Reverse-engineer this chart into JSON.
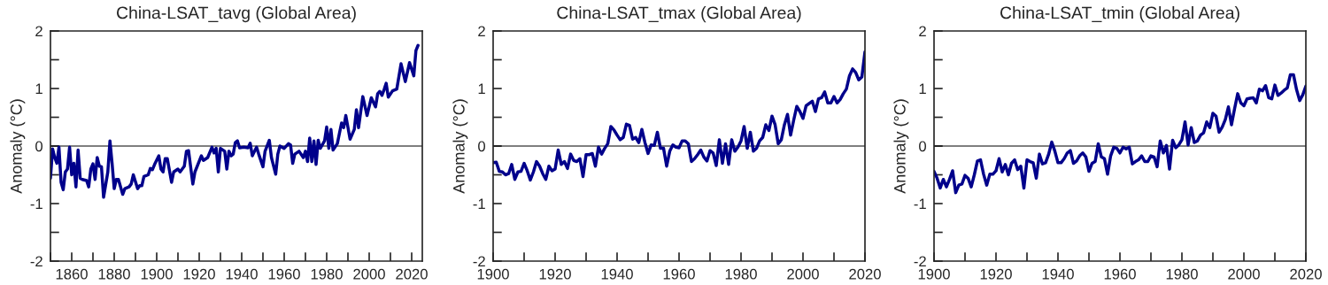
{
  "chart_data": [
    {
      "type": "line",
      "title": "China-LSAT_tavg (Global Area)",
      "ylabel": "Anomaly (°C)",
      "xlim": [
        1850,
        2025
      ],
      "ylim": [
        -2,
        2
      ],
      "xticks": [
        {
          "value": 1850,
          "label": null
        },
        1860,
        {
          "value": 1870,
          "label": null
        },
        1880,
        {
          "value": 1890,
          "label": null
        },
        1900,
        {
          "value": 1910,
          "label": null
        },
        1920,
        {
          "value": 1930,
          "label": null
        },
        1940,
        {
          "value": 1950,
          "label": null
        },
        1960,
        {
          "value": 1970,
          "label": null
        },
        1980,
        {
          "value": 1990,
          "label": null
        },
        2000,
        {
          "value": 2010,
          "label": null
        },
        2020
      ],
      "yticks": [
        -2,
        {
          "value": -1.5,
          "label": null
        },
        -1,
        {
          "value": -0.5,
          "label": null
        },
        0,
        {
          "value": 0.5,
          "label": null
        },
        1,
        {
          "value": 1.5,
          "label": null
        },
        2
      ],
      "grid": false,
      "legend": false,
      "marker": "none",
      "line_style": "solid",
      "ref_lines": [
        {
          "axis": "y",
          "value": 0,
          "color": "#000000"
        }
      ],
      "series": [
        {
          "color": "#00008b",
          "x": [
            1850,
            1851,
            1852,
            1853,
            1854,
            1855,
            1856,
            1857,
            1858,
            1859,
            1860,
            1861,
            1862,
            1863,
            1864,
            1865,
            1867,
            1868,
            1869,
            1870,
            1871,
            1872,
            1873,
            1874,
            1875,
            1877,
            1878,
            1879,
            1880,
            1881,
            1882,
            1884,
            1885,
            1887,
            1888,
            1889,
            1891,
            1892,
            1893,
            1894,
            1896,
            1897,
            1898,
            1899,
            1901,
            1902,
            1903,
            1904,
            1905,
            1907,
            1908,
            1910,
            1911,
            1913,
            1914,
            1915,
            1917,
            1918,
            1921,
            1922,
            1924,
            1926,
            1927,
            1928,
            1929,
            1930,
            1932,
            1933,
            1934,
            1935,
            1936,
            1937,
            1938,
            1939,
            1941,
            1943,
            1944,
            1945,
            1947,
            1948,
            1950,
            1951,
            1953,
            1954,
            1956,
            1957,
            1958,
            1960,
            1962,
            1963,
            1964,
            1965,
            1967,
            1969,
            1970,
            1971,
            1972,
            1973,
            1974,
            1975,
            1976,
            1977,
            1979,
            1980,
            1981,
            1982,
            1983,
            1985,
            1986,
            1987,
            1988,
            1989,
            1991,
            1993,
            1994,
            1995,
            1997,
            1999,
            2001,
            2003,
            2004,
            2005,
            2006,
            2007,
            2008,
            2009,
            2011,
            2013,
            2015,
            2017,
            2019,
            2021,
            2022,
            2023
          ],
          "values": [
            -0.56,
            -0.05,
            -0.2,
            -0.3,
            -0.02,
            -0.63,
            -0.76,
            -0.45,
            -0.4,
            -0.02,
            -0.5,
            -0.3,
            -0.71,
            -0.07,
            -0.56,
            -0.58,
            -0.6,
            -0.71,
            -0.4,
            -0.31,
            -0.58,
            -0.2,
            -0.35,
            -0.36,
            -0.89,
            -0.45,
            0.09,
            -0.3,
            -0.74,
            -0.58,
            -0.58,
            -0.84,
            -0.74,
            -0.71,
            -0.66,
            -0.5,
            -0.74,
            -0.69,
            -0.69,
            -0.53,
            -0.5,
            -0.39,
            -0.41,
            -0.32,
            -0.17,
            -0.4,
            -0.45,
            -0.22,
            -0.22,
            -0.63,
            -0.45,
            -0.4,
            -0.45,
            -0.35,
            -0.09,
            -0.08,
            -0.66,
            -0.45,
            -0.17,
            -0.25,
            -0.2,
            -0.02,
            -0.12,
            -0.04,
            -0.45,
            -0.04,
            -0.09,
            -0.4,
            -0.09,
            -0.17,
            -0.14,
            0.06,
            0.09,
            -0.03,
            -0.02,
            -0.03,
            0.05,
            -0.17,
            -0.02,
            -0.14,
            -0.36,
            -0.09,
            0.1,
            -0.2,
            -0.49,
            -0.14,
            0,
            -0.04,
            0.04,
            0.02,
            -0.3,
            -0.14,
            -0.09,
            -0.2,
            -0.09,
            -0.27,
            0.14,
            -0.27,
            0.09,
            -0.32,
            0.1,
            -0.04,
            0.09,
            0.33,
            -0.04,
            0.29,
            -0.07,
            0.04,
            0.22,
            0.4,
            0.32,
            0.53,
            0.12,
            0.29,
            0.63,
            0.32,
            0.86,
            0.53,
            0.84,
            0.68,
            0.91,
            0.95,
            0.88,
            0.98,
            1.09,
            0.85,
            0.96,
            0.99,
            1.43,
            1.12,
            1.45,
            1.22,
            1.66,
            1.75
          ]
        }
      ]
    },
    {
      "type": "line",
      "title": "China-LSAT_tmax (Global Area)",
      "ylabel": "Anomaly (°C)",
      "xlim": [
        1900,
        2020
      ],
      "ylim": [
        -2,
        2
      ],
      "xticks": [
        1900,
        {
          "value": 1910,
          "label": null
        },
        1920,
        {
          "value": 1930,
          "label": null
        },
        1940,
        {
          "value": 1950,
          "label": null
        },
        1960,
        {
          "value": 1970,
          "label": null
        },
        1980,
        {
          "value": 1990,
          "label": null
        },
        2000,
        {
          "value": 2010,
          "label": null
        },
        2020
      ],
      "yticks": [
        -2,
        {
          "value": -1.5,
          "label": null
        },
        -1,
        {
          "value": -0.5,
          "label": null
        },
        0,
        {
          "value": 0.5,
          "label": null
        },
        1,
        {
          "value": 1.5,
          "label": null
        },
        2
      ],
      "grid": false,
      "legend": false,
      "marker": "none",
      "line_style": "solid",
      "ref_lines": [
        {
          "axis": "y",
          "value": 0,
          "color": "#000000"
        }
      ],
      "series": [
        {
          "color": "#00008b",
          "x": [
            1900,
            1901,
            1902,
            1903,
            1904,
            1905,
            1906,
            1907,
            1908,
            1909,
            1910,
            1911,
            1912,
            1913,
            1914,
            1915,
            1916,
            1917,
            1918,
            1919,
            1920,
            1921,
            1922,
            1923,
            1924,
            1925,
            1926,
            1927,
            1928,
            1929,
            1930,
            1931,
            1932,
            1933,
            1934,
            1935,
            1936,
            1937,
            1938,
            1939,
            1940,
            1941,
            1942,
            1943,
            1944,
            1945,
            1946,
            1947,
            1948,
            1949,
            1950,
            1951,
            1952,
            1953,
            1954,
            1955,
            1956,
            1957,
            1958,
            1959,
            1960,
            1961,
            1962,
            1963,
            1964,
            1965,
            1966,
            1967,
            1968,
            1969,
            1970,
            1971,
            1972,
            1973,
            1974,
            1975,
            1976,
            1977,
            1978,
            1979,
            1980,
            1981,
            1982,
            1983,
            1984,
            1985,
            1986,
            1987,
            1988,
            1989,
            1990,
            1991,
            1992,
            1993,
            1994,
            1995,
            1996,
            1997,
            1998,
            1999,
            2000,
            2001,
            2002,
            2003,
            2004,
            2005,
            2006,
            2007,
            2008,
            2009,
            2010,
            2011,
            2012,
            2013,
            2014,
            2015,
            2016,
            2017,
            2018,
            2019,
            2020
          ],
          "values": [
            -0.29,
            -0.28,
            -0.44,
            -0.45,
            -0.5,
            -0.48,
            -0.32,
            -0.58,
            -0.45,
            -0.44,
            -0.3,
            -0.43,
            -0.59,
            -0.45,
            -0.27,
            -0.35,
            -0.48,
            -0.58,
            -0.35,
            -0.43,
            -0.4,
            -0.07,
            -0.32,
            -0.27,
            -0.39,
            -0.14,
            -0.25,
            -0.27,
            -0.22,
            -0.53,
            -0.15,
            -0.15,
            -0.13,
            -0.35,
            -0.02,
            -0.14,
            -0.04,
            0.04,
            0.34,
            0.28,
            0.19,
            0.11,
            0.15,
            0.38,
            0.36,
            0.12,
            0.15,
            0.06,
            0.29,
            0.06,
            -0.13,
            0.02,
            0.01,
            0.24,
            -0.04,
            -0.04,
            -0.35,
            -0.09,
            0.02,
            -0.02,
            -0.03,
            0.09,
            0.09,
            0.04,
            -0.27,
            -0.22,
            -0.15,
            -0.07,
            -0.19,
            -0.26,
            -0.08,
            -0.12,
            -0.34,
            0.11,
            -0.3,
            0.04,
            -0.32,
            0.11,
            -0.09,
            -0.02,
            0.09,
            0.34,
            -0.04,
            0.24,
            -0.09,
            -0.04,
            0.09,
            0.15,
            0.37,
            0.27,
            0.52,
            0.37,
            0.04,
            0.11,
            0.37,
            0.55,
            0.19,
            0.45,
            0.69,
            0.6,
            0.48,
            0.7,
            0.74,
            0.78,
            0.6,
            0.82,
            0.84,
            0.94,
            0.75,
            0.75,
            0.86,
            0.75,
            0.81,
            0.91,
            0.99,
            1.22,
            1.34,
            1.28,
            1.15,
            1.2,
            1.64
          ]
        }
      ]
    },
    {
      "type": "line",
      "title": "China-LSAT_tmin (Global Area)",
      "ylabel": "Anomaly (°C)",
      "xlim": [
        1900,
        2020
      ],
      "ylim": [
        -2,
        2
      ],
      "xticks": [
        1900,
        {
          "value": 1910,
          "label": null
        },
        1920,
        {
          "value": 1930,
          "label": null
        },
        1940,
        {
          "value": 1950,
          "label": null
        },
        1960,
        {
          "value": 1970,
          "label": null
        },
        1980,
        {
          "value": 1990,
          "label": null
        },
        2000,
        {
          "value": 2010,
          "label": null
        },
        2020
      ],
      "yticks": [
        -2,
        {
          "value": -1.5,
          "label": null
        },
        -1,
        {
          "value": -0.5,
          "label": null
        },
        0,
        {
          "value": 0.5,
          "label": null
        },
        1,
        {
          "value": 1.5,
          "label": null
        },
        2
      ],
      "grid": false,
      "legend": false,
      "marker": "none",
      "line_style": "solid",
      "ref_lines": [
        {
          "axis": "y",
          "value": 0,
          "color": "#000000"
        }
      ],
      "series": [
        {
          "color": "#00008b",
          "x": [
            1900,
            1901,
            1902,
            1903,
            1904,
            1905,
            1906,
            1907,
            1908,
            1909,
            1910,
            1911,
            1912,
            1913,
            1914,
            1915,
            1916,
            1917,
            1918,
            1919,
            1920,
            1921,
            1922,
            1923,
            1924,
            1925,
            1926,
            1927,
            1928,
            1929,
            1930,
            1931,
            1932,
            1933,
            1934,
            1935,
            1936,
            1937,
            1938,
            1939,
            1940,
            1941,
            1942,
            1943,
            1944,
            1945,
            1946,
            1947,
            1948,
            1949,
            1950,
            1951,
            1952,
            1953,
            1954,
            1955,
            1956,
            1957,
            1958,
            1959,
            1960,
            1961,
            1962,
            1963,
            1964,
            1965,
            1966,
            1967,
            1968,
            1969,
            1970,
            1971,
            1972,
            1973,
            1974,
            1975,
            1976,
            1977,
            1978,
            1979,
            1980,
            1981,
            1982,
            1983,
            1984,
            1985,
            1986,
            1987,
            1988,
            1989,
            1990,
            1991,
            1992,
            1993,
            1994,
            1995,
            1996,
            1997,
            1998,
            1999,
            2000,
            2001,
            2002,
            2003,
            2004,
            2005,
            2006,
            2007,
            2008,
            2009,
            2010,
            2011,
            2012,
            2013,
            2014,
            2015,
            2016,
            2017,
            2018,
            2019,
            2020
          ],
          "values": [
            -0.44,
            -0.56,
            -0.73,
            -0.58,
            -0.71,
            -0.58,
            -0.43,
            -0.81,
            -0.68,
            -0.66,
            -0.51,
            -0.56,
            -0.71,
            -0.5,
            -0.26,
            -0.24,
            -0.49,
            -0.68,
            -0.49,
            -0.49,
            -0.43,
            -0.22,
            -0.45,
            -0.32,
            -0.5,
            -0.3,
            -0.24,
            -0.41,
            -0.35,
            -0.73,
            -0.24,
            -0.27,
            -0.29,
            -0.56,
            -0.14,
            -0.31,
            -0.29,
            -0.14,
            0.07,
            -0.09,
            -0.29,
            -0.29,
            -0.22,
            -0.12,
            -0.08,
            -0.3,
            -0.26,
            -0.17,
            -0.12,
            -0.19,
            -0.44,
            -0.3,
            -0.27,
            0.04,
            -0.19,
            -0.22,
            -0.49,
            -0.17,
            -0.02,
            -0.04,
            -0.12,
            -0.02,
            -0.05,
            -0.02,
            -0.31,
            -0.27,
            -0.24,
            -0.17,
            -0.27,
            -0.27,
            -0.17,
            -0.19,
            -0.36,
            0.09,
            -0.12,
            0.01,
            -0.4,
            0.1,
            -0.03,
            0.02,
            0.11,
            0.42,
            0.02,
            0.32,
            0.06,
            0.09,
            0.19,
            0.23,
            0.42,
            0.32,
            0.57,
            0.52,
            0.24,
            0.33,
            0.46,
            0.68,
            0.37,
            0.65,
            0.91,
            0.75,
            0.7,
            0.82,
            0.83,
            0.84,
            0.75,
            0.99,
            0.96,
            1.05,
            0.84,
            0.82,
            1.06,
            0.88,
            0.92,
            0.97,
            1.01,
            1.24,
            1.24,
            0.98,
            0.79,
            0.89,
            1.04
          ]
        }
      ]
    }
  ]
}
